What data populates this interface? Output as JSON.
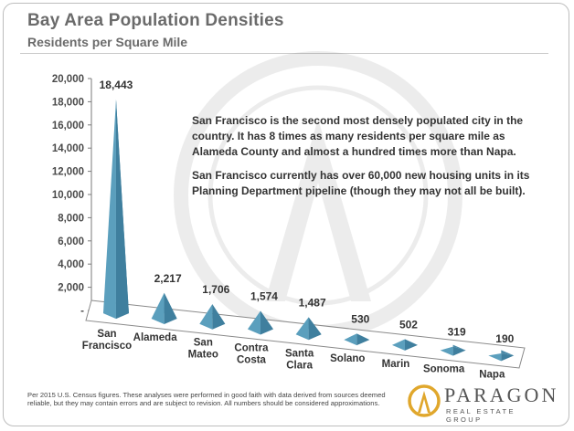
{
  "header": {
    "title": "Bay Area Population Densities",
    "subtitle": "Residents per Square Mile"
  },
  "chart_data": {
    "type": "bar",
    "categories": [
      "San Francisco",
      "Alameda",
      "San Mateo",
      "Contra Costa",
      "Santa Clara",
      "Solano",
      "Marin",
      "Sonoma",
      "Napa"
    ],
    "category_lines": [
      [
        "San",
        "Francisco"
      ],
      [
        "Alameda"
      ],
      [
        "San",
        "Mateo"
      ],
      [
        "Contra",
        "Costa"
      ],
      [
        "Santa",
        "Clara"
      ],
      [
        "Solano"
      ],
      [
        "Marin"
      ],
      [
        "Sonoma"
      ],
      [
        "Napa"
      ]
    ],
    "values": [
      18443,
      2217,
      1706,
      1574,
      1487,
      530,
      502,
      319,
      190
    ],
    "data_labels": [
      "18,443",
      "2,217",
      "1,706",
      "1,574",
      "1,487",
      "530",
      "502",
      "319",
      "190"
    ],
    "ylim": [
      0,
      20000
    ],
    "yticks": [
      20000,
      18000,
      16000,
      14000,
      12000,
      10000,
      8000,
      6000,
      4000,
      2000,
      0
    ],
    "ytick_labels": [
      "20,000",
      "18,000",
      "16,000",
      "14,000",
      "12,000",
      "10,000",
      "8,000",
      "6,000",
      "4,000",
      "2,000",
      "-"
    ],
    "bar_style": "3d-pyramid",
    "bar_color": "#5b9fbd",
    "grid": false,
    "annotation": [
      "San Francisco is the second most densely populated city in the",
      "country. It has 8 times as many residents per square mile as",
      "Alameda County and almost a hundred times more than Napa.",
      "",
      "San Francisco currently has over 60,000 new housing units in its",
      "Planning Department pipeline (though they may not all be built)."
    ]
  },
  "footer": {
    "note": "Per 2015 U.S. Census figures. These analyses were performed in good faith with data derived from sources deemed reliable, but they may contain errors and are subject to revision. All numbers should be considered approximations."
  },
  "logo": {
    "name": "PARAGON",
    "tagline": "REAL ESTATE GROUP"
  }
}
